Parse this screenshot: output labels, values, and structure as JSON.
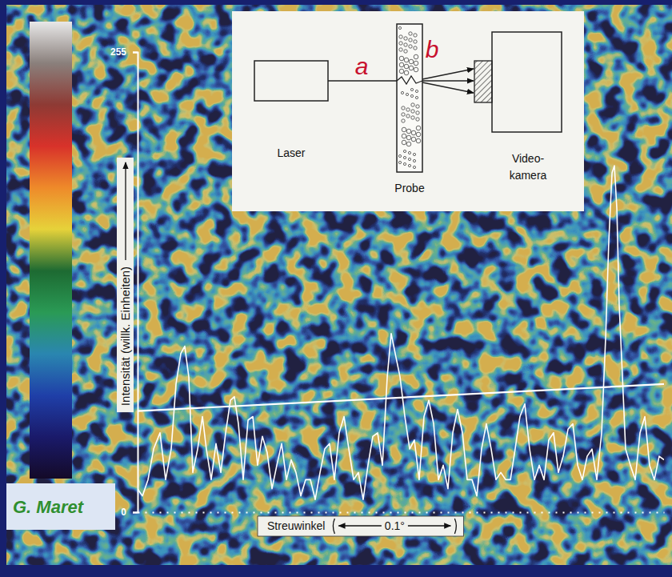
{
  "chart_data": {
    "type": "line",
    "x_label": "Streuwinkel",
    "y_label": "Intensität (willk. Einheiten)",
    "x": [
      0,
      0.0043,
      0.0093,
      0.0143,
      0.02,
      0.025,
      0.03,
      0.0343,
      0.0386,
      0.0421,
      0.0457,
      0.0493,
      0.0536,
      0.0579,
      0.0614,
      0.0657,
      0.07,
      0.0743,
      0.0786,
      0.0829,
      0.0864,
      0.09,
      0.0943,
      0.0986,
      0.1029,
      0.1071,
      0.1114,
      0.1157,
      0.12,
      0.1243,
      0.1286,
      0.1329,
      0.1371,
      0.1414,
      0.1457,
      0.15,
      0.1543,
      0.1586,
      0.1629,
      0.1671,
      0.1714,
      0.1757,
      0.18,
      0.1843,
      0.1886,
      0.1929,
      0.1971,
      0.2014,
      0.2057,
      0.21,
      0.2143,
      0.2186,
      0.2229,
      0.2264,
      0.23,
      0.2343,
      0.2386,
      0.2429,
      0.2471,
      0.2514,
      0.2557,
      0.26,
      0.2643,
      0.2686,
      0.2729,
      0.2771,
      0.2814,
      0.2857,
      0.29,
      0.2943,
      0.2986,
      0.3029,
      0.3071,
      0.3114,
      0.3157,
      0.32,
      0.3243,
      0.3286,
      0.3329,
      0.3371,
      0.3414,
      0.3457,
      0.35,
      0.3543,
      0.3586,
      0.3629,
      0.3671,
      0.3714,
      0.3757,
      0.38,
      0.3843,
      0.3886,
      0.3929,
      0.3971,
      0.4014,
      0.4057,
      0.41,
      0.4143,
      0.4179,
      0.4207,
      0.4236,
      0.4257,
      0.4279,
      0.43,
      0.4329,
      0.4357,
      0.44,
      0.4443,
      0.4486,
      0.4529,
      0.4571,
      0.4614,
      0.4657,
      0.47
    ],
    "values": [
      13,
      9,
      18,
      35,
      44,
      18,
      35,
      71,
      88,
      92,
      75,
      22,
      35,
      53,
      35,
      18,
      38,
      22,
      44,
      62,
      64,
      49,
      18,
      51,
      53,
      26,
      42,
      33,
      13,
      26,
      38,
      18,
      29,
      22,
      9,
      18,
      18,
      7,
      22,
      35,
      38,
      18,
      44,
      53,
      35,
      18,
      22,
      7,
      26,
      42,
      44,
      26,
      75,
      99,
      88,
      75,
      53,
      35,
      40,
      18,
      53,
      62,
      49,
      18,
      26,
      13,
      44,
      57,
      44,
      18,
      18,
      9,
      35,
      49,
      35,
      18,
      22,
      18,
      18,
      35,
      53,
      60,
      35,
      18,
      26,
      18,
      40,
      44,
      22,
      31,
      46,
      49,
      26,
      18,
      31,
      35,
      18,
      44,
      97,
      150,
      188,
      192,
      168,
      115,
      75,
      35,
      26,
      18,
      44,
      53,
      26,
      18,
      31,
      29
    ],
    "color": "#ffffff",
    "xlim": [
      0,
      0.47
    ],
    "ylim": [
      0,
      255
    ],
    "yticks": [
      0,
      255
    ],
    "tick_labels": "y",
    "scale_bar": {
      "length": 0.1,
      "label": "0.1°"
    },
    "reference_line": {
      "x": [
        0,
        0.47
      ],
      "values": [
        56,
        71
      ]
    },
    "colorbar": {
      "range": [
        0,
        255
      ],
      "colors": [
        "#140a28",
        "#1a1a6a",
        "#1f3fa8",
        "#2a86b0",
        "#2a9a55",
        "#1d6a32",
        "#e6d23a",
        "#ee8a2a",
        "#d8322a",
        "#8e3a34",
        "#8a807c",
        "#e8e8e8"
      ]
    }
  },
  "diagram": {
    "nodes": [
      {
        "label": "Laser"
      },
      {
        "label": "Probe"
      },
      {
        "label_lines": [
          "Video-",
          "kamera"
        ]
      }
    ],
    "beams": [
      {
        "label": "a"
      },
      {
        "label": "b"
      }
    ]
  },
  "credit": "G. Maret"
}
